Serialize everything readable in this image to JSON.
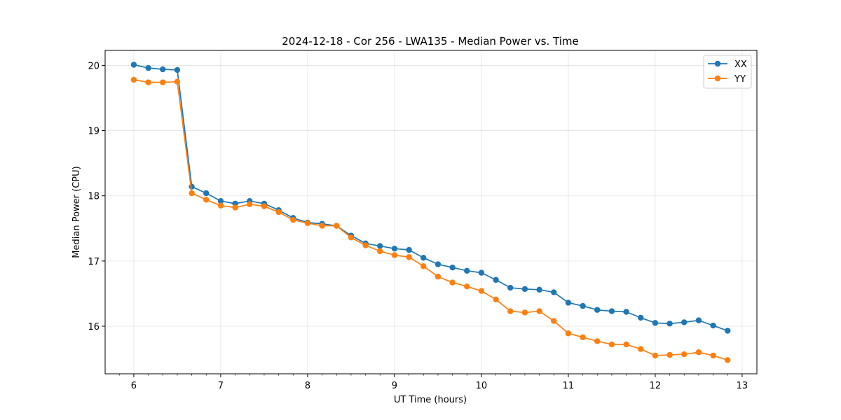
{
  "chart_data": {
    "type": "line",
    "title": "2024-12-18 - Cor 256 - LWA135 - Median Power vs. Time",
    "xlabel": "UT Time (hours)",
    "ylabel": "Median Power (CPU)",
    "xlim": [
      5.67,
      13.17
    ],
    "ylim": [
      15.27,
      20.23
    ],
    "xticks": [
      6,
      7,
      8,
      9,
      10,
      11,
      12,
      13
    ],
    "yticks": [
      16,
      17,
      18,
      19,
      20
    ],
    "grid": true,
    "legend_position": "top-right",
    "x": [
      6.0,
      6.167,
      6.333,
      6.5,
      6.667,
      6.833,
      7.0,
      7.167,
      7.333,
      7.5,
      7.667,
      7.833,
      8.0,
      8.167,
      8.333,
      8.5,
      8.667,
      8.833,
      9.0,
      9.167,
      9.333,
      9.5,
      9.667,
      9.833,
      10.0,
      10.167,
      10.333,
      10.5,
      10.667,
      10.833,
      11.0,
      11.167,
      11.333,
      11.5,
      11.667,
      11.833,
      12.0,
      12.167,
      12.333,
      12.5,
      12.667,
      12.833
    ],
    "series": [
      {
        "name": "XX",
        "color": "#1f77b4",
        "values": [
          20.01,
          19.96,
          19.94,
          19.93,
          18.14,
          18.04,
          17.92,
          17.88,
          17.92,
          17.88,
          17.78,
          17.66,
          17.59,
          17.57,
          17.54,
          17.39,
          17.27,
          17.23,
          17.19,
          17.17,
          17.05,
          16.95,
          16.9,
          16.85,
          16.82,
          16.71,
          16.59,
          16.57,
          16.56,
          16.52,
          16.36,
          16.31,
          16.25,
          16.23,
          16.22,
          16.13,
          16.05,
          16.04,
          16.06,
          16.09,
          16.01,
          15.93
        ]
      },
      {
        "name": "YY",
        "color": "#ff7f0e",
        "values": [
          19.78,
          19.74,
          19.74,
          19.75,
          18.04,
          17.94,
          17.85,
          17.82,
          17.87,
          17.84,
          17.75,
          17.63,
          17.58,
          17.54,
          17.54,
          17.36,
          17.24,
          17.15,
          17.09,
          17.06,
          16.92,
          16.76,
          16.67,
          16.61,
          16.54,
          16.41,
          16.23,
          16.21,
          16.23,
          16.08,
          15.89,
          15.83,
          15.77,
          15.72,
          15.72,
          15.65,
          15.55,
          15.56,
          15.57,
          15.6,
          15.55,
          15.48
        ]
      }
    ]
  }
}
